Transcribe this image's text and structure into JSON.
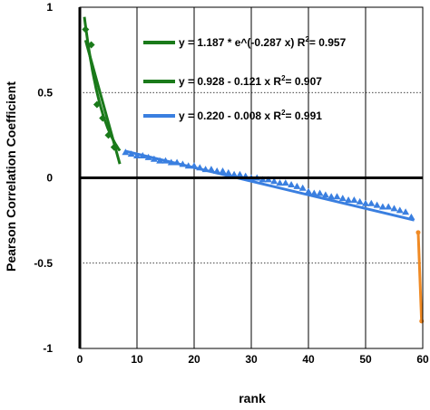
{
  "chart_data": {
    "type": "scatter",
    "xlabel": "rank",
    "ylabel": "Pearson Correlation Coefficient",
    "xlim": [
      0,
      60
    ],
    "ylim": [
      -1,
      1
    ],
    "xticks": [
      {
        "v": 0,
        "label": "0"
      },
      {
        "v": 10,
        "label": "10"
      },
      {
        "v": 20,
        "label": "20"
      },
      {
        "v": 30,
        "label": "30"
      },
      {
        "v": 40,
        "label": "40"
      },
      {
        "v": 50,
        "label": "50"
      },
      {
        "v": 60,
        "label": "60"
      }
    ],
    "yticks": [
      {
        "v": 1,
        "label": "1"
      },
      {
        "v": 0.5,
        "label": "0.5"
      },
      {
        "v": 0,
        "label": "0"
      },
      {
        "v": -0.5,
        "label": "-0.5"
      },
      {
        "v": -1,
        "label": "-1"
      }
    ],
    "grid": {
      "vertical": "solid",
      "horizontal": "dotted"
    },
    "legend_position": "top-right",
    "legend": [
      {
        "color": "#1a7a1a",
        "pre": "y = 1.187 * e^(-0.287 x)   R",
        "sup": "2",
        "post": "= 0.957"
      },
      {
        "color": "#1a7a1a",
        "pre": "y = 0.928 - 0.121 x   R",
        "sup": "2",
        "post": "= 0.907"
      },
      {
        "color": "#3a7fe0",
        "pre": "y = 0.220 - 0.008 x   R",
        "sup": "2",
        "post": "= 0.991"
      }
    ],
    "series": [
      {
        "marker": "diamond",
        "color": "#1a7a1a",
        "x": [
          1,
          2,
          3,
          4,
          5,
          6
        ],
        "y": [
          0.87,
          0.78,
          0.43,
          0.35,
          0.25,
          0.18
        ]
      },
      {
        "marker": "triangle",
        "color": "#3a7fe0",
        "x": [
          8,
          9,
          10,
          11,
          12,
          13,
          14,
          15,
          16,
          17,
          18,
          19,
          20,
          21,
          22,
          23,
          24,
          25,
          26,
          27,
          28,
          29,
          30,
          31,
          32,
          33,
          34,
          35,
          36,
          37,
          38,
          39,
          40,
          41,
          42,
          43,
          44,
          45,
          46,
          47,
          48,
          49,
          50,
          51,
          52,
          53,
          54,
          55,
          56,
          57,
          58
        ],
        "y": [
          0.15,
          0.14,
          0.13,
          0.13,
          0.12,
          0.11,
          0.1,
          0.1,
          0.09,
          0.09,
          0.08,
          0.07,
          0.07,
          0.06,
          0.05,
          0.05,
          0.04,
          0.04,
          0.03,
          0.02,
          0.02,
          0.01,
          0.0,
          0.0,
          -0.01,
          -0.01,
          -0.02,
          -0.03,
          -0.03,
          -0.04,
          -0.05,
          -0.06,
          -0.08,
          -0.09,
          -0.09,
          -0.1,
          -0.11,
          -0.11,
          -0.12,
          -0.13,
          -0.13,
          -0.14,
          -0.15,
          -0.15,
          -0.16,
          -0.17,
          -0.17,
          -0.18,
          -0.19,
          -0.2,
          -0.23
        ]
      },
      {
        "marker": "circle",
        "color": "#f08a24",
        "x": [
          59.2,
          59.8
        ],
        "y": [
          -0.32,
          -0.84
        ]
      }
    ],
    "fits": [
      {
        "type": "exp",
        "a": 1.187,
        "b": -0.287,
        "color": "#1a7a1a",
        "x_range": [
          0.8,
          7
        ]
      },
      {
        "type": "linear",
        "a": 0.928,
        "b": -0.121,
        "color": "#1a7a1a",
        "x_range": [
          1,
          7
        ]
      },
      {
        "type": "linear",
        "a": 0.22,
        "b": -0.008,
        "color": "#3a7fe0",
        "x_range": [
          8,
          58.5
        ]
      },
      {
        "type": "segment",
        "points": [
          [
            59.2,
            -0.32
          ],
          [
            59.8,
            -0.84
          ]
        ],
        "color": "#f08a24"
      }
    ]
  }
}
